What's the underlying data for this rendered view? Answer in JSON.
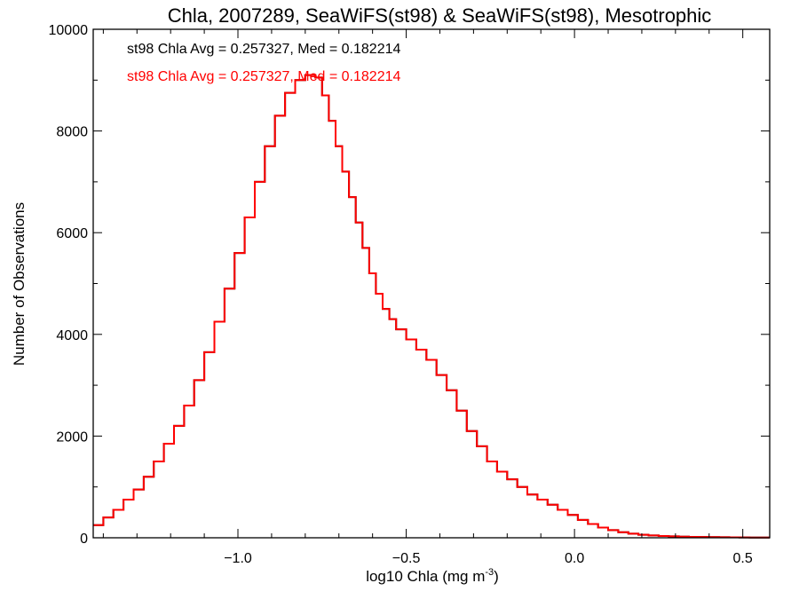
{
  "chart_data": {
    "type": "line",
    "title": "Chla, 2007289, SeaWiFS(st98) & SeaWiFS(st98), Mesotrophic",
    "xlabel_base": "log10 Chla (mg m",
    "xlabel_sup": "-3",
    "xlabel_close": ")",
    "ylabel": "Number of Observations",
    "xlim": [
      -1.43,
      0.58
    ],
    "ylim": [
      0,
      10000
    ],
    "x_ticks": [
      -1.0,
      -0.5,
      0.0,
      0.5
    ],
    "x_tick_labels": [
      "−1.0",
      "−0.5",
      "0.0",
      "0.5"
    ],
    "y_ticks": [
      0,
      2000,
      4000,
      6000,
      8000,
      10000
    ],
    "y_tick_labels": [
      "0",
      "2000",
      "4000",
      "6000",
      "8000",
      "10000"
    ],
    "grid": false,
    "annotations": [
      {
        "text": "st98 Chla Avg = 0.257327, Med = 0.182214",
        "color": "#000000"
      },
      {
        "text": "st98 Chla Avg = 0.257327, Med = 0.182214",
        "color": "#ff0000"
      }
    ],
    "series": [
      {
        "color": "#000000",
        "style": "step",
        "x": [
          -1.43,
          -1.4,
          -1.37,
          -1.34,
          -1.31,
          -1.28,
          -1.25,
          -1.22,
          -1.19,
          -1.16,
          -1.13,
          -1.1,
          -1.07,
          -1.04,
          -1.01,
          -0.98,
          -0.95,
          -0.92,
          -0.89,
          -0.86,
          -0.83,
          -0.8,
          -0.77,
          -0.75,
          -0.73,
          -0.71,
          -0.69,
          -0.67,
          -0.65,
          -0.63,
          -0.61,
          -0.59,
          -0.57,
          -0.55,
          -0.53,
          -0.5,
          -0.47,
          -0.44,
          -0.41,
          -0.38,
          -0.35,
          -0.32,
          -0.29,
          -0.26,
          -0.23,
          -0.2,
          -0.17,
          -0.14,
          -0.11,
          -0.08,
          -0.05,
          -0.02,
          0.01,
          0.04,
          0.07,
          0.1,
          0.13,
          0.16,
          0.19,
          0.22,
          0.25,
          0.28,
          0.31,
          0.34,
          0.37,
          0.4,
          0.43,
          0.46,
          0.49,
          0.52,
          0.55,
          0.58
        ],
        "values": [
          250,
          400,
          550,
          750,
          950,
          1200,
          1500,
          1850,
          2200,
          2600,
          3100,
          3650,
          4250,
          4900,
          5600,
          6300,
          7000,
          7700,
          8300,
          8750,
          9000,
          9100,
          9050,
          8700,
          8200,
          7700,
          7200,
          6700,
          6200,
          5700,
          5200,
          4800,
          4500,
          4300,
          4100,
          3900,
          3700,
          3500,
          3200,
          2900,
          2500,
          2100,
          1800,
          1500,
          1300,
          1150,
          1000,
          850,
          750,
          650,
          550,
          450,
          350,
          270,
          200,
          150,
          110,
          80,
          60,
          45,
          35,
          28,
          22,
          18,
          15,
          12,
          10,
          8,
          7,
          6,
          5,
          5
        ]
      },
      {
        "color": "#ff0000",
        "style": "step",
        "x": [
          -1.43,
          -1.4,
          -1.37,
          -1.34,
          -1.31,
          -1.28,
          -1.25,
          -1.22,
          -1.19,
          -1.16,
          -1.13,
          -1.1,
          -1.07,
          -1.04,
          -1.01,
          -0.98,
          -0.95,
          -0.92,
          -0.89,
          -0.86,
          -0.83,
          -0.8,
          -0.77,
          -0.75,
          -0.73,
          -0.71,
          -0.69,
          -0.67,
          -0.65,
          -0.63,
          -0.61,
          -0.59,
          -0.57,
          -0.55,
          -0.53,
          -0.5,
          -0.47,
          -0.44,
          -0.41,
          -0.38,
          -0.35,
          -0.32,
          -0.29,
          -0.26,
          -0.23,
          -0.2,
          -0.17,
          -0.14,
          -0.11,
          -0.08,
          -0.05,
          -0.02,
          0.01,
          0.04,
          0.07,
          0.1,
          0.13,
          0.16,
          0.19,
          0.22,
          0.25,
          0.28,
          0.31,
          0.34,
          0.37,
          0.4,
          0.43,
          0.46,
          0.49,
          0.52,
          0.55,
          0.58
        ],
        "values": [
          250,
          400,
          550,
          750,
          950,
          1200,
          1500,
          1850,
          2200,
          2600,
          3100,
          3650,
          4250,
          4900,
          5600,
          6300,
          7000,
          7700,
          8300,
          8750,
          9000,
          9100,
          9050,
          8700,
          8200,
          7700,
          7200,
          6700,
          6200,
          5700,
          5200,
          4800,
          4500,
          4300,
          4100,
          3900,
          3700,
          3500,
          3200,
          2900,
          2500,
          2100,
          1800,
          1500,
          1300,
          1150,
          1000,
          850,
          750,
          650,
          550,
          450,
          350,
          270,
          200,
          150,
          110,
          80,
          60,
          45,
          35,
          28,
          22,
          18,
          15,
          12,
          10,
          8,
          7,
          6,
          5,
          5
        ]
      }
    ]
  }
}
